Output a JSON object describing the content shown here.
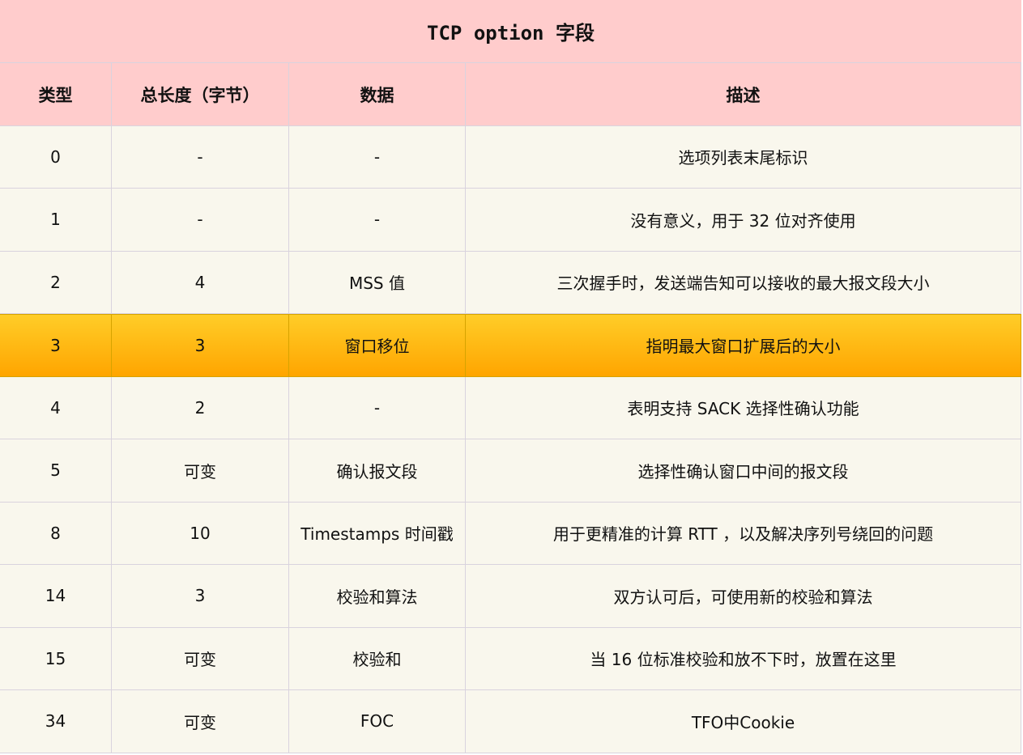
{
  "title": "TCP option 字段",
  "headers": [
    "类型",
    "总长度（字节）",
    "数据",
    "描述"
  ],
  "colors": {
    "header_bg": "#ffcccc",
    "row_bg": "#f9f7ed",
    "highlight_top": "#ffcd28",
    "highlight_bottom": "#ffa500"
  },
  "highlighted_row": 3,
  "rows": [
    [
      "0",
      "-",
      "-",
      "选项列表末尾标识"
    ],
    [
      "1",
      "-",
      "-",
      "没有意义，用于 32 位对齐使用"
    ],
    [
      "2",
      "4",
      "MSS 值",
      "三次握手时，发送端告知可以接收的最大报文段大小"
    ],
    [
      "3",
      "3",
      "窗口移位",
      "指明最大窗口扩展后的大小"
    ],
    [
      "4",
      "2",
      "-",
      "表明支持 SACK 选择性确认功能"
    ],
    [
      "5",
      "可变",
      "确认报文段",
      "选择性确认窗口中间的报文段"
    ],
    [
      "8",
      "10",
      "Timestamps 时间戳",
      "用于更精准的计算 RTT ，以及解决序列号绕回的问题"
    ],
    [
      "14",
      "3",
      "校验和算法",
      "双方认可后，可使用新的校验和算法"
    ],
    [
      "15",
      "可变",
      "校验和",
      "当 16 位标准校验和放不下时，放置在这里"
    ],
    [
      "34",
      "可变",
      "FOC",
      "TFO中Cookie"
    ]
  ]
}
